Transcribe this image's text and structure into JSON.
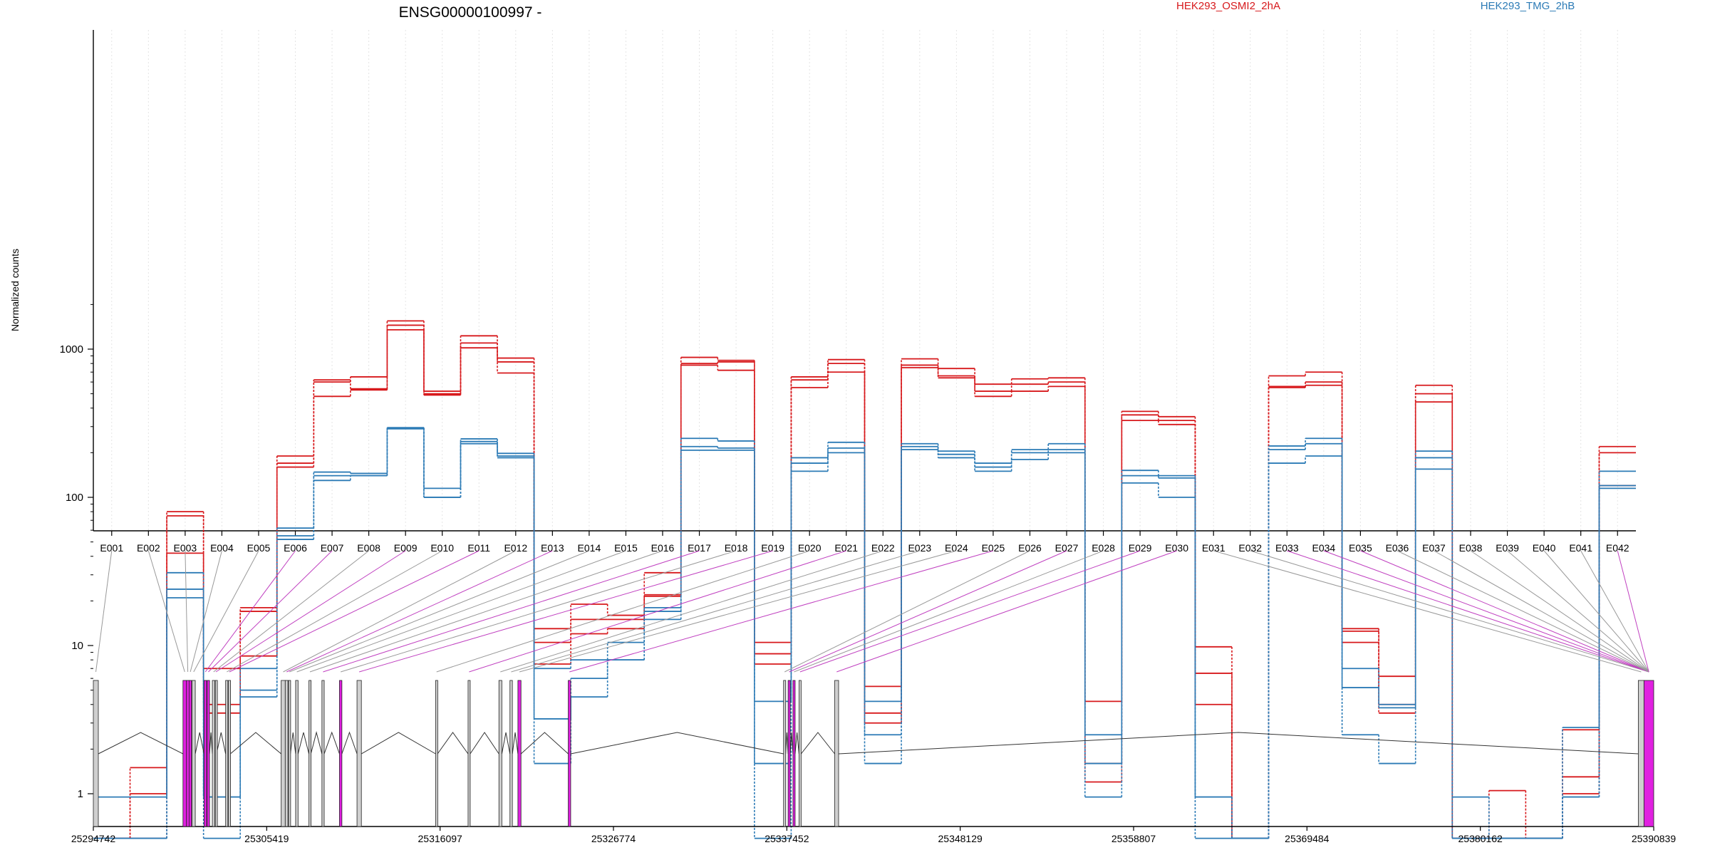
{
  "chart_data": {
    "type": "line",
    "title": "ENSG00000100997 -",
    "ylabel": "Normalized counts",
    "yscale": "log",
    "ylim": [
      0.5,
      2200
    ],
    "yticks": [
      "1",
      "10",
      "100",
      "1000"
    ],
    "ytick_values": [
      1,
      10,
      100,
      1000
    ],
    "grid": "vertical dotted lines at each exon",
    "legend_placement": "top",
    "categories": [
      "E001",
      "E002",
      "E003",
      "E004",
      "E005",
      "E006",
      "E007",
      "E008",
      "E009",
      "E010",
      "E011",
      "E012",
      "E013",
      "E014",
      "E015",
      "E016",
      "E017",
      "E018",
      "E019",
      "E020",
      "E021",
      "E022",
      "E023",
      "E024",
      "E025",
      "E026",
      "E027",
      "E028",
      "E029",
      "E030",
      "E031",
      "E032",
      "E033",
      "E034",
      "E035",
      "E036",
      "E037",
      "E038",
      "E039",
      "E040",
      "E041",
      "E042"
    ],
    "groups": [
      {
        "name": "HEK293_OSMI2_2hA",
        "color": "#d7191c"
      },
      {
        "name": "HEK293_TMG_2hB",
        "color": "#2c7bb6"
      }
    ],
    "series": [
      {
        "group": 0,
        "values": [
          0.5,
          1.5,
          80,
          7,
          18,
          190,
          600,
          650,
          1550,
          520,
          1230,
          870,
          13,
          19,
          16,
          31,
          880,
          840,
          10.5,
          650,
          850,
          5.3,
          860,
          740,
          580,
          630,
          640,
          4.2,
          380,
          350,
          9.8,
          0.5,
          660,
          700,
          13,
          6.2,
          570,
          0.5,
          1.05,
          0.5,
          2.7,
          220
        ]
      },
      {
        "group": 0,
        "values": [
          0.5,
          1.0,
          75,
          4,
          17,
          170,
          620,
          540,
          1450,
          500,
          1100,
          820,
          10.5,
          15,
          15,
          22,
          800,
          820,
          8.8,
          620,
          800,
          3.5,
          780,
          660,
          520,
          580,
          600,
          1.2,
          360,
          330,
          6.5,
          0.5,
          550,
          600,
          12.5,
          4.0,
          500,
          0.5,
          0.5,
          0.5,
          1.3,
          200
        ]
      },
      {
        "group": 0,
        "values": [
          0.5,
          0.5,
          42,
          3.5,
          8.5,
          160,
          480,
          530,
          1350,
          490,
          1020,
          690,
          7.5,
          12,
          13,
          21.5,
          780,
          720,
          7.5,
          550,
          700,
          3.0,
          750,
          640,
          480,
          520,
          560,
          1.6,
          330,
          310,
          4.0,
          0.5,
          560,
          570,
          10.5,
          3.5,
          440,
          0.5,
          0.5,
          0.5,
          1.0,
          120
        ]
      },
      {
        "group": 1,
        "values": [
          0.95,
          0.95,
          31,
          0.95,
          7,
          62,
          148,
          145,
          295,
          115,
          248,
          198,
          7,
          8,
          10.5,
          18,
          250,
          240,
          4.2,
          185,
          235,
          4.2,
          230,
          205,
          170,
          210,
          230,
          2.5,
          152,
          140,
          0.95,
          0.5,
          222,
          250,
          7,
          4.0,
          205,
          0.95,
          0.5,
          0.5,
          2.8,
          150
        ]
      },
      {
        "group": 1,
        "values": [
          0.5,
          0.5,
          24,
          0.95,
          5,
          55,
          140,
          140,
          295,
          100,
          238,
          190,
          3.2,
          6,
          8,
          17,
          220,
          215,
          1.6,
          170,
          215,
          2.5,
          220,
          195,
          160,
          200,
          210,
          1.6,
          140,
          135,
          0.95,
          0.5,
          210,
          230,
          5.2,
          3.8,
          185,
          0.5,
          0.5,
          0.5,
          0.95,
          120
        ]
      },
      {
        "group": 1,
        "values": [
          0.5,
          0.5,
          21,
          0.5,
          4.5,
          52,
          130,
          140,
          290,
          100,
          230,
          185,
          1.6,
          4.5,
          8,
          15,
          208,
          208,
          0.5,
          150,
          200,
          1.6,
          210,
          185,
          150,
          180,
          200,
          0.95,
          125,
          100,
          0.5,
          0.5,
          170,
          190,
          2.5,
          1.6,
          155,
          0.5,
          0.5,
          0.5,
          0.95,
          115
        ]
      }
    ],
    "gene_model": {
      "coordinate_labels": [
        "25294742",
        "25305419",
        "25316097",
        "25326774",
        "25337452",
        "25348129",
        "25358807",
        "25369484",
        "25380162",
        "25390839"
      ],
      "xrange": [
        25294742,
        25390839
      ],
      "exons": [
        {
          "start": 25294742,
          "end": 25295050,
          "type": "gray"
        },
        {
          "start": 25300262,
          "end": 25300480,
          "type": "magenta"
        },
        {
          "start": 25300480,
          "end": 25300640,
          "type": "magenta"
        },
        {
          "start": 25300640,
          "end": 25300790,
          "type": "magenta"
        },
        {
          "start": 25300820,
          "end": 25301020,
          "type": "gray"
        },
        {
          "start": 25301560,
          "end": 25301720,
          "type": "magenta"
        },
        {
          "start": 25301750,
          "end": 25301900,
          "type": "magenta"
        },
        {
          "start": 25302070,
          "end": 25302220,
          "type": "gray"
        },
        {
          "start": 25302250,
          "end": 25302330,
          "type": "gray"
        },
        {
          "start": 25302890,
          "end": 25303030,
          "type": "gray"
        },
        {
          "start": 25303060,
          "end": 25303180,
          "type": "gray"
        },
        {
          "start": 25306310,
          "end": 25306560,
          "type": "gray"
        },
        {
          "start": 25306560,
          "end": 25306730,
          "type": "gray"
        },
        {
          "start": 25306760,
          "end": 25306880,
          "type": "gray"
        },
        {
          "start": 25307200,
          "end": 25307350,
          "type": "gray"
        },
        {
          "start": 25308020,
          "end": 25308140,
          "type": "gray"
        },
        {
          "start": 25308820,
          "end": 25308960,
          "type": "gray"
        },
        {
          "start": 25309900,
          "end": 25310050,
          "type": "magenta"
        },
        {
          "start": 25310980,
          "end": 25311250,
          "type": "gray"
        },
        {
          "start": 25315820,
          "end": 25315940,
          "type": "gray"
        },
        {
          "start": 25317820,
          "end": 25317950,
          "type": "gray"
        },
        {
          "start": 25319720,
          "end": 25319900,
          "type": "gray"
        },
        {
          "start": 25320400,
          "end": 25320550,
          "type": "gray"
        },
        {
          "start": 25320890,
          "end": 25321080,
          "type": "magenta"
        },
        {
          "start": 25323990,
          "end": 25324140,
          "type": "magenta"
        },
        {
          "start": 25337250,
          "end": 25337380,
          "type": "gray"
        },
        {
          "start": 25337530,
          "end": 25337660,
          "type": "magenta"
        },
        {
          "start": 25337830,
          "end": 25337960,
          "type": "magenta"
        },
        {
          "start": 25338200,
          "end": 25338330,
          "type": "gray"
        },
        {
          "start": 25340400,
          "end": 25340640,
          "type": "gray"
        },
        {
          "start": 25389890,
          "end": 25390240,
          "type": "gray"
        },
        {
          "start": 25390240,
          "end": 25390839,
          "type": "magenta"
        }
      ],
      "connector_groups": [
        0,
        0,
        0,
        0,
        0,
        1,
        1,
        0,
        1,
        0,
        1,
        0,
        1,
        0,
        0,
        0,
        1,
        0,
        1,
        0,
        1,
        0,
        0,
        0,
        1,
        0,
        1,
        0,
        1,
        1,
        0,
        0,
        1,
        1,
        1,
        0,
        0,
        0,
        0,
        0,
        0,
        1
      ],
      "connector_colors": [
        "#999999",
        "#c040c0"
      ]
    }
  }
}
